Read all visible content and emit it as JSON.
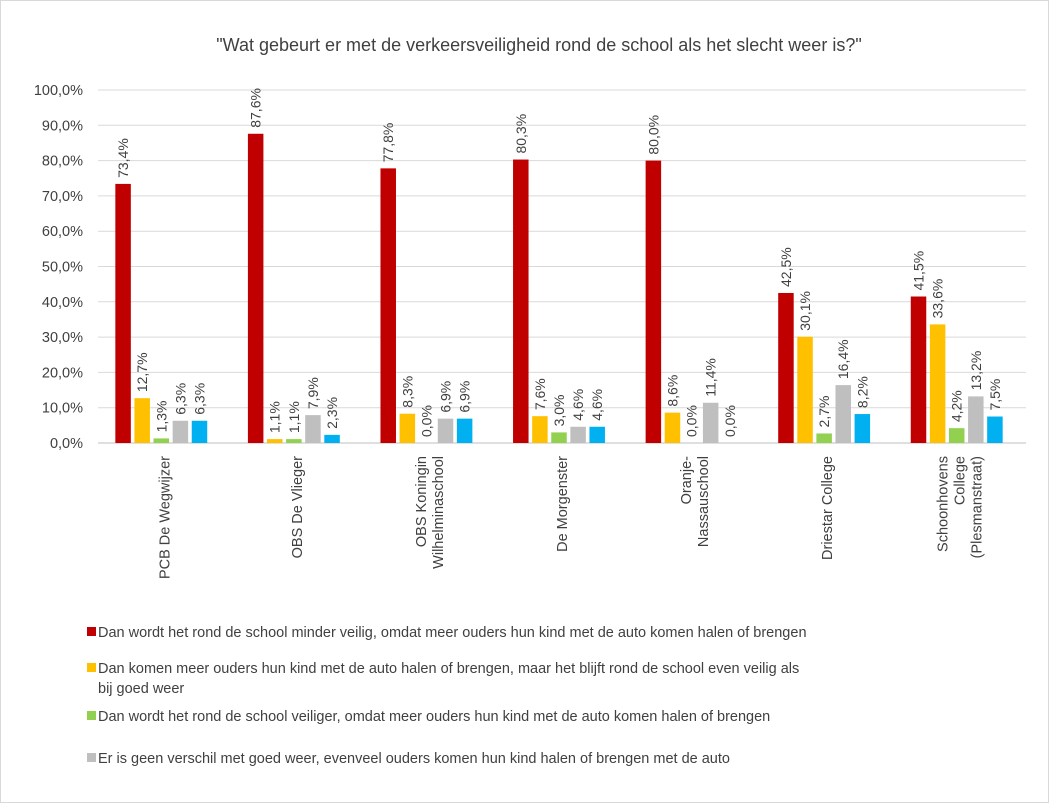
{
  "chart_data": {
    "type": "bar",
    "title": "\"Wat gebeurt er met de verkeersveiligheid rond de school als het slecht weer is?\"",
    "xlabel": "",
    "ylabel": "",
    "ylim": [
      0,
      100
    ],
    "y_ticks": [
      "0,0%",
      "10,0%",
      "20,0%",
      "30,0%",
      "40,0%",
      "50,0%",
      "60,0%",
      "70,0%",
      "80,0%",
      "90,0%",
      "100,0%"
    ],
    "grid": true,
    "legend_position": "bottom",
    "categories": [
      [
        "PCB De Wegwijzer"
      ],
      [
        "OBS De Vlieger"
      ],
      [
        "OBS Koningin",
        "Wilhelminaschool"
      ],
      [
        "De Morgenster"
      ],
      [
        "Oranje-",
        "Nassauschool"
      ],
      [
        "Driestar College"
      ],
      [
        "Schoonhovens",
        "College",
        "(Plesmanstraat)"
      ]
    ],
    "series": [
      {
        "name": "Dan wordt het rond de school minder veilig, omdat meer ouders hun kind met de auto komen halen of brengen",
        "name_lines": [
          "Dan wordt het rond de school minder veilig, omdat meer ouders hun kind met de auto komen halen of brengen"
        ],
        "color": "#c00000",
        "values": [
          73.4,
          87.6,
          77.8,
          80.3,
          80.0,
          42.5,
          41.5
        ],
        "labels": [
          "73,4%",
          "87,6%",
          "77,8%",
          "80,3%",
          "80,0%",
          "42,5%",
          "41,5%"
        ]
      },
      {
        "name": "Dan komen meer ouders hun kind met de auto halen of brengen, maar het blijft rond de school even veilig als bij goed weer",
        "name_lines": [
          "Dan komen meer ouders hun kind met de auto halen of brengen, maar het blijft rond de school even veilig als",
          "bij goed weer"
        ],
        "color": "#ffc000",
        "values": [
          12.7,
          1.1,
          8.3,
          7.6,
          8.6,
          30.1,
          33.6
        ],
        "labels": [
          "12,7%",
          "1,1%",
          "8,3%",
          "7,6%",
          "8,6%",
          "30,1%",
          "33,6%"
        ]
      },
      {
        "name": "Dan wordt het rond de school veiliger, omdat meer ouders hun kind met de auto komen halen of brengen",
        "name_lines": [
          "Dan wordt het rond de school veiliger, omdat meer ouders hun kind met de auto komen halen of brengen"
        ],
        "color": "#92d050",
        "values": [
          1.3,
          1.1,
          0.0,
          3.0,
          0.0,
          2.7,
          4.2
        ],
        "labels": [
          "1,3%",
          "1,1%",
          "0,0%",
          "3,0%",
          "0,0%",
          "2,7%",
          "4,2%"
        ]
      },
      {
        "name": "Er is geen verschil met goed weer, evenveel ouders komen hun kind halen of brengen met de auto",
        "name_lines": [
          "Er is geen verschil met goed weer, evenveel ouders komen hun kind halen of brengen met de auto"
        ],
        "color": "#bfbfbf",
        "values": [
          6.3,
          7.9,
          6.9,
          4.6,
          11.4,
          16.4,
          13.2
        ],
        "labels": [
          "6,3%",
          "7,9%",
          "6,9%",
          "4,6%",
          "11,4%",
          "16,4%",
          "13,2%"
        ]
      },
      {
        "name": "",
        "name_lines": [],
        "color": "#00b0f0",
        "values": [
          6.3,
          2.3,
          6.9,
          4.6,
          0.0,
          8.2,
          7.5
        ],
        "labels": [
          "6,3%",
          "2,3%",
          "6,9%",
          "4,6%",
          "0,0%",
          "8,2%",
          "7,5%"
        ]
      }
    ]
  }
}
